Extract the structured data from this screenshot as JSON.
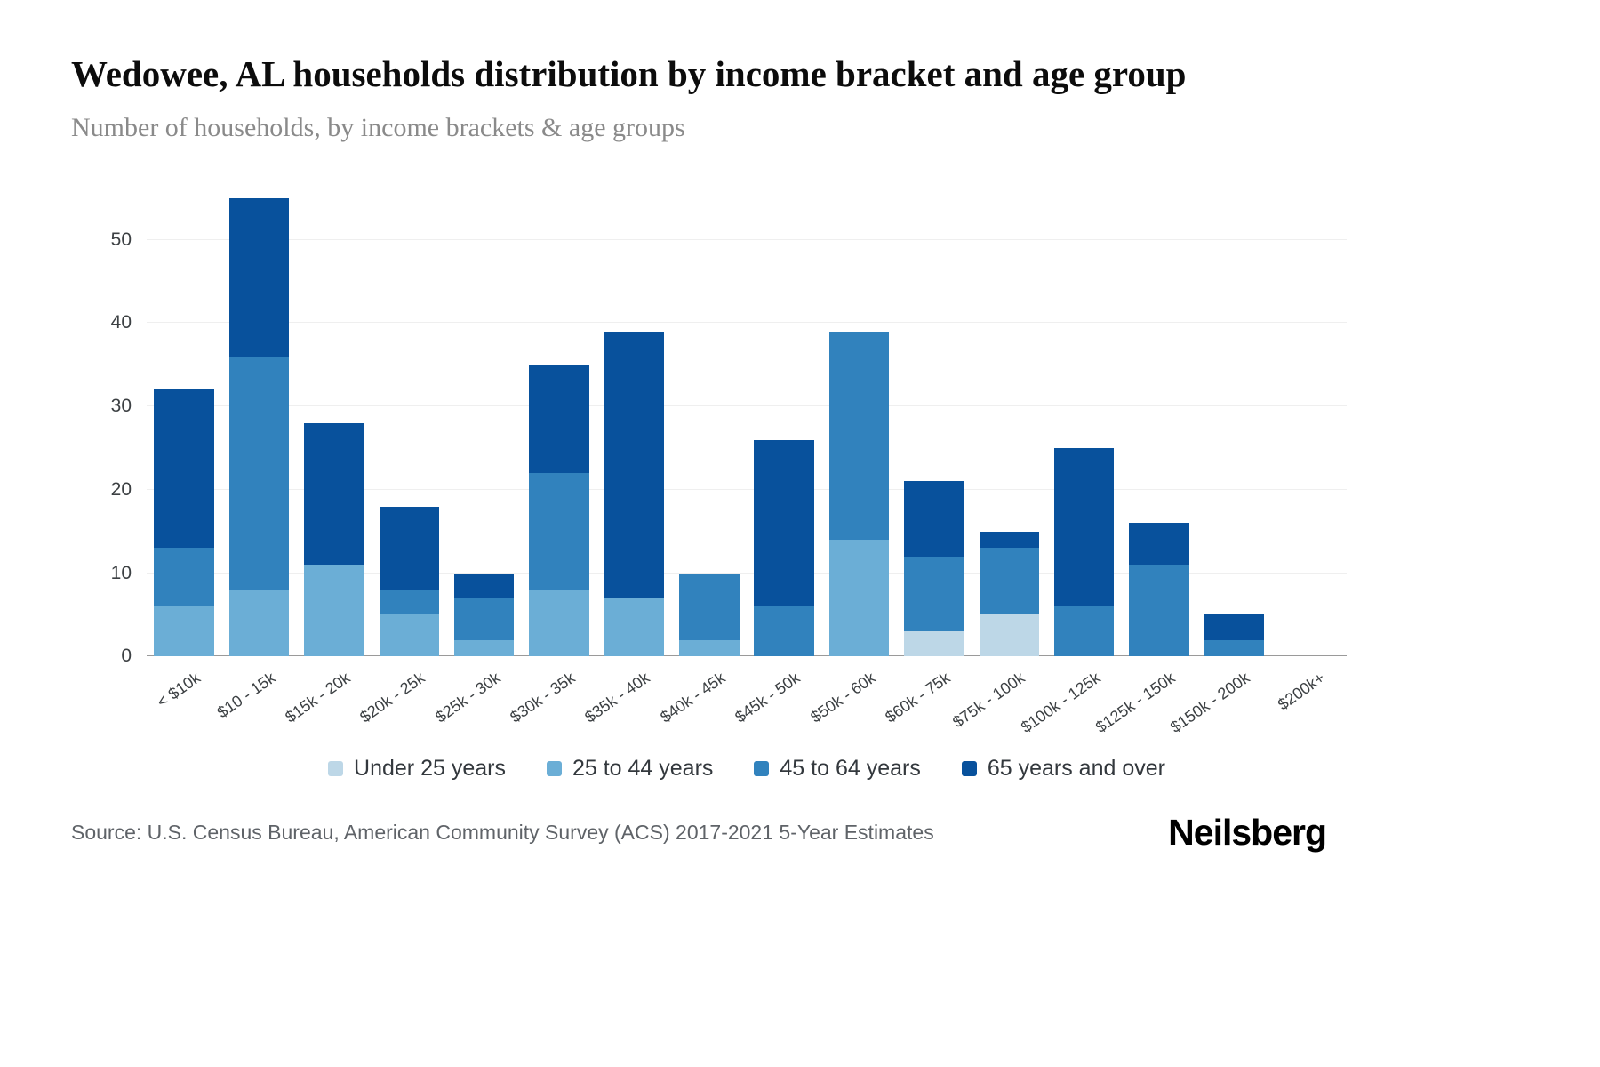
{
  "chart_data": {
    "type": "bar",
    "stacked": true,
    "title": "Wedowee, AL households distribution by income bracket and age group",
    "subtitle": "Number of households, by income brackets & age groups",
    "categories": [
      "< $10k",
      "$10 - 15k",
      "$15k - 20k",
      "$20k - 25k",
      "$25k - 30k",
      "$30k - 35k",
      "$35k - 40k",
      "$40k - 45k",
      "$45k - 50k",
      "$50k - 60k",
      "$60k - 75k",
      "$75k - 100k",
      "$100k - 125k",
      "$125k - 150k",
      "$150k - 200k",
      "$200k+"
    ],
    "series": [
      {
        "name": "Under 25 years",
        "color": "#bdd7e7",
        "values": [
          0,
          0,
          0,
          0,
          0,
          0,
          0,
          0,
          0,
          0,
          3,
          5,
          0,
          0,
          0,
          0
        ]
      },
      {
        "name": "25 to 44 years",
        "color": "#6baed6",
        "values": [
          6,
          8,
          11,
          5,
          2,
          8,
          7,
          2,
          0,
          14,
          0,
          0,
          0,
          0,
          0,
          0
        ]
      },
      {
        "name": "45 to 64 years",
        "color": "#3182bd",
        "values": [
          7,
          28,
          0,
          3,
          5,
          14,
          0,
          8,
          6,
          25,
          9,
          8,
          6,
          11,
          2,
          0
        ]
      },
      {
        "name": "65 years and over",
        "color": "#08519c",
        "values": [
          19,
          19,
          17,
          10,
          3,
          13,
          32,
          0,
          20,
          0,
          9,
          2,
          19,
          5,
          3,
          0
        ]
      }
    ],
    "totals": [
      32,
      55,
      28,
      18,
      10,
      35,
      39,
      10,
      26,
      39,
      21,
      15,
      25,
      16,
      5,
      0
    ],
    "ylim": [
      0,
      56
    ],
    "yticks": [
      0,
      10,
      20,
      30,
      40,
      50
    ],
    "grid": true,
    "legend_position": "bottom"
  },
  "footer": {
    "source": "Source: U.S. Census Bureau, American Community Survey (ACS) 2017-2021 5-Year Estimates",
    "brand": "Neilsberg"
  }
}
